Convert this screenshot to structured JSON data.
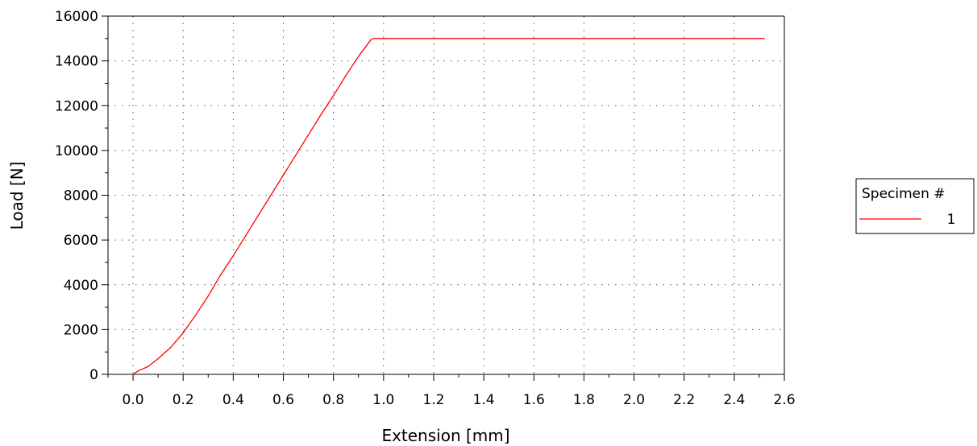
{
  "chart_data": {
    "type": "line",
    "title": "",
    "xlabel": "Extension [mm]",
    "ylabel": "Load [N]",
    "xlim": [
      -0.1,
      2.6
    ],
    "ylim": [
      0,
      16000
    ],
    "x_ticks": [
      0.0,
      0.2,
      0.4,
      0.6,
      0.8,
      1.0,
      1.2,
      1.4,
      1.6,
      1.8,
      2.0,
      2.2,
      2.4,
      2.6
    ],
    "x_tick_labels": [
      "0.0",
      "0.2",
      "0.4",
      "0.6",
      "0.8",
      "1.0",
      "1.2",
      "1.4",
      "1.6",
      "1.8",
      "2.0",
      "2.2",
      "2.4",
      "2.6"
    ],
    "y_ticks": [
      0,
      2000,
      4000,
      6000,
      8000,
      10000,
      12000,
      14000,
      16000
    ],
    "y_tick_labels": [
      "0",
      "2000",
      "4000",
      "6000",
      "8000",
      "10000",
      "12000",
      "14000",
      "16000"
    ],
    "grid": true,
    "legend": {
      "title": "Specimen #",
      "placement": "right"
    },
    "series": [
      {
        "name": "1",
        "color": "#ff0000",
        "points": [
          [
            0.0,
            0
          ],
          [
            0.02,
            150
          ],
          [
            0.06,
            350
          ],
          [
            0.1,
            700
          ],
          [
            0.15,
            1200
          ],
          [
            0.2,
            1850
          ],
          [
            0.25,
            2650
          ],
          [
            0.3,
            3500
          ],
          [
            0.35,
            4450
          ],
          [
            0.4,
            5300
          ],
          [
            0.45,
            6200
          ],
          [
            0.5,
            7100
          ],
          [
            0.55,
            8000
          ],
          [
            0.6,
            8900
          ],
          [
            0.65,
            9800
          ],
          [
            0.7,
            10700
          ],
          [
            0.75,
            11600
          ],
          [
            0.8,
            12450
          ],
          [
            0.85,
            13350
          ],
          [
            0.9,
            14200
          ],
          [
            0.95,
            14950
          ],
          [
            0.96,
            15000
          ],
          [
            2.52,
            15000
          ]
        ]
      }
    ]
  }
}
